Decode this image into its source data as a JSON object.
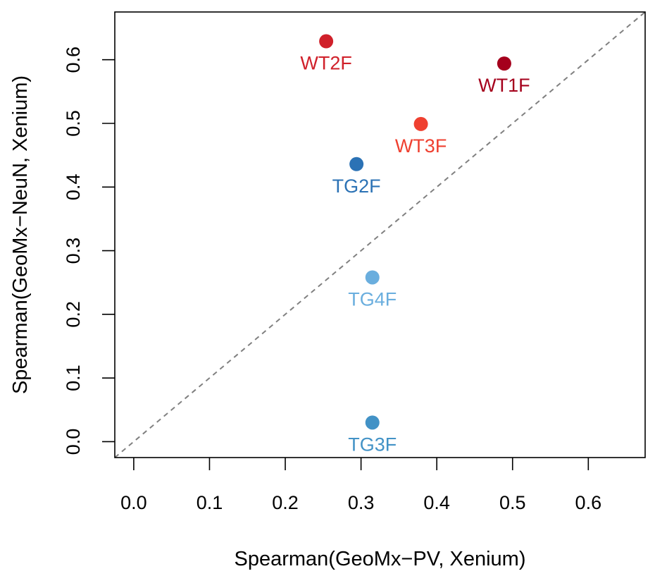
{
  "chart_data": {
    "type": "scatter",
    "xlabel": "Spearman(GeoMx−PV, Xenium)",
    "ylabel": "Spearman(GeoMx−NeuN, Xenium)",
    "xlim": [
      -0.025,
      0.675
    ],
    "ylim": [
      -0.025,
      0.675
    ],
    "x_ticks": [
      0.0,
      0.1,
      0.2,
      0.3,
      0.4,
      0.5,
      0.6
    ],
    "x_tick_labels": [
      "0.0",
      "0.1",
      "0.2",
      "0.3",
      "0.4",
      "0.5",
      "0.6"
    ],
    "y_ticks": [
      0.0,
      0.1,
      0.2,
      0.3,
      0.4,
      0.5,
      0.6
    ],
    "y_tick_labels": [
      "0.0",
      "0.1",
      "0.2",
      "0.3",
      "0.4",
      "0.5",
      "0.6"
    ],
    "reference_line": {
      "type": "identity",
      "style": "dashed",
      "color": "#808080"
    },
    "points": [
      {
        "label": "WT2F",
        "x": 0.254,
        "y": 0.629,
        "color": "#d0202a"
      },
      {
        "label": "WT1F",
        "x": 0.489,
        "y": 0.594,
        "color": "#a5001c"
      },
      {
        "label": "WT3F",
        "x": 0.379,
        "y": 0.499,
        "color": "#ef4030"
      },
      {
        "label": "TG2F",
        "x": 0.294,
        "y": 0.436,
        "color": "#2b72b5"
      },
      {
        "label": "TG4F",
        "x": 0.315,
        "y": 0.258,
        "color": "#6aaede"
      },
      {
        "label": "TG3F",
        "x": 0.315,
        "y": 0.03,
        "color": "#4292c6"
      }
    ]
  }
}
